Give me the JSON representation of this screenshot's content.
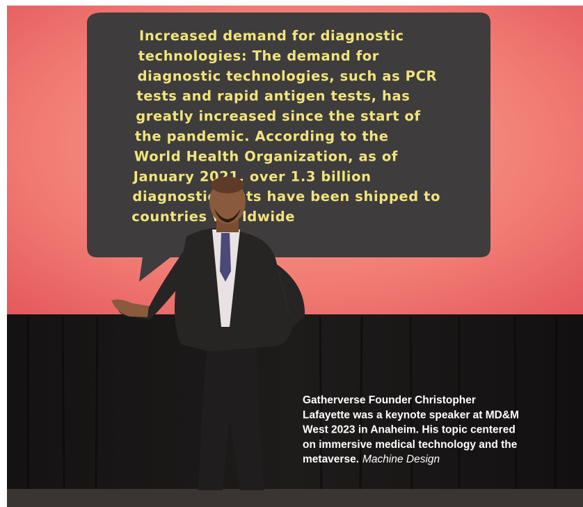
{
  "slide": {
    "lines": [
      "Increased demand for diagnostic",
      "technologies: The demand for",
      "diagnostic technologies, such as PCR",
      "tests and rapid antigen tests, has",
      "greatly increased since the start of",
      "the pandemic. According to the",
      "World Health Organization, as of",
      "January 2021, over 1.3 billion",
      "diagnostic tests have been shipped to",
      "countries worldwide"
    ]
  },
  "caption": {
    "lines": [
      "Gatherverse Founder Christopher",
      "Lafayette was a keynote speaker at MD&M",
      "West 2023 in Anaheim. His topic centered",
      "on immersive medical technology and the",
      "metaverse."
    ],
    "credit": "Machine Design"
  }
}
